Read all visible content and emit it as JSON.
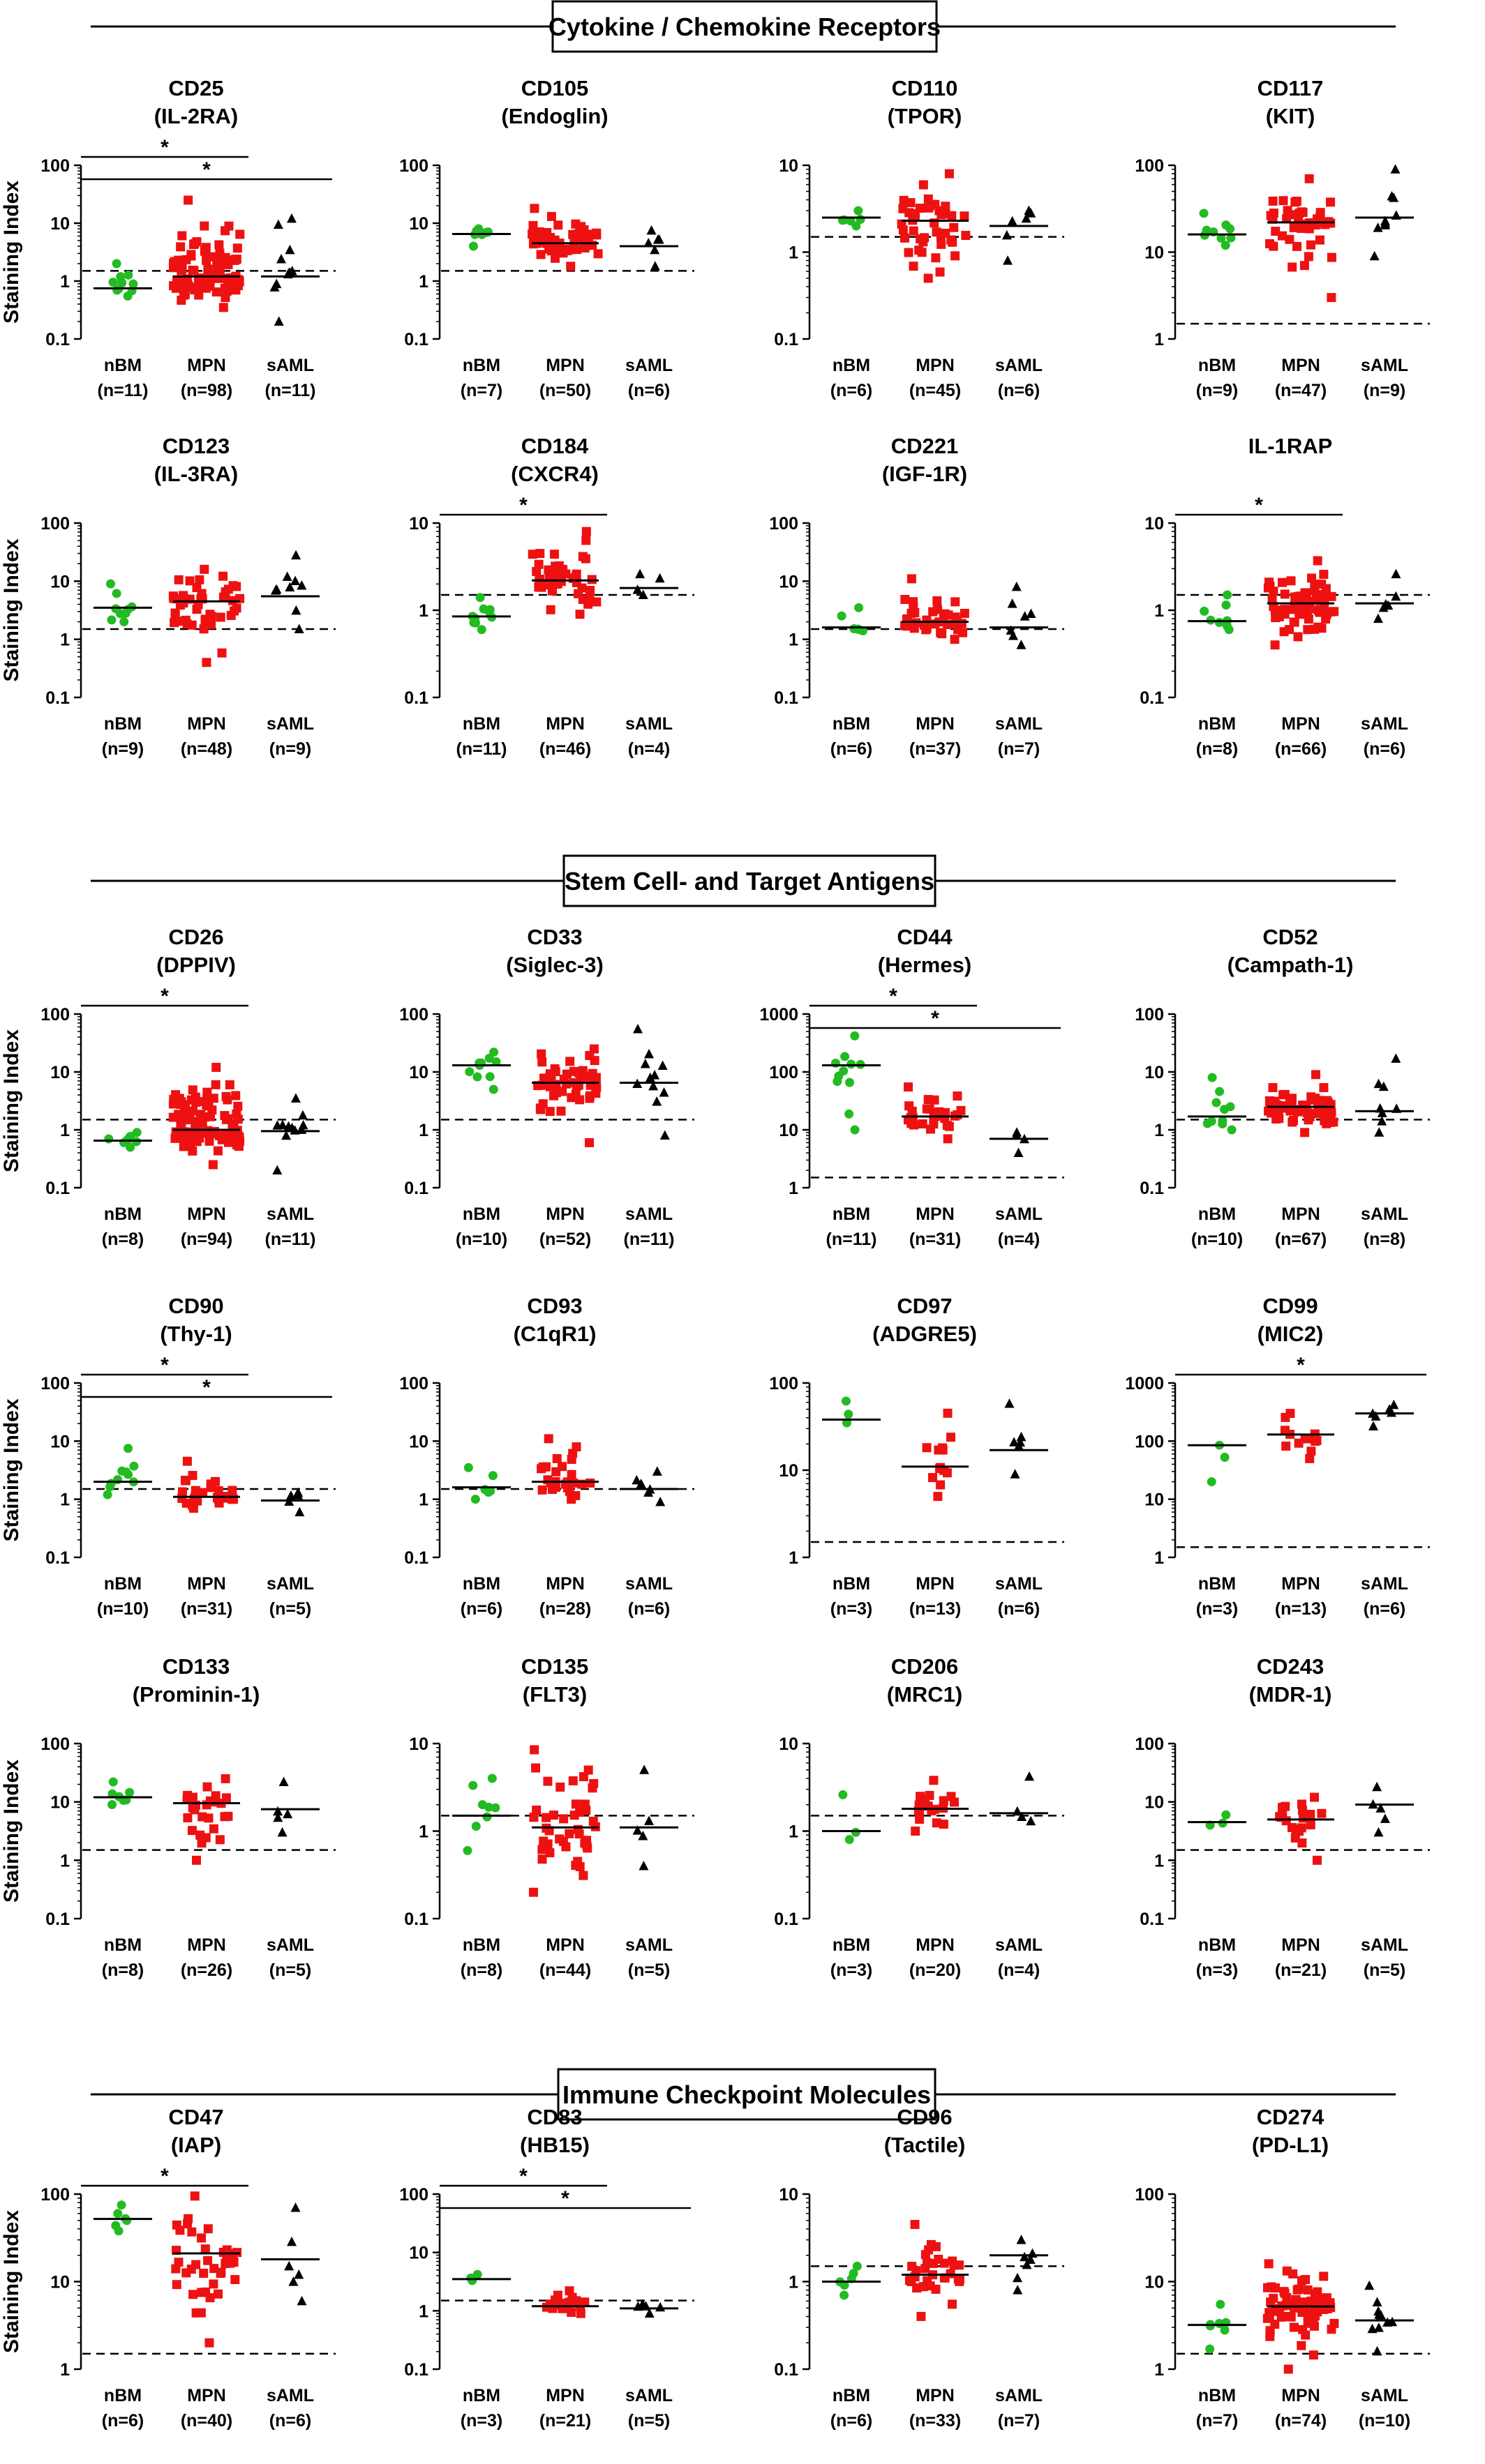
{
  "colors": {
    "nBM": "#22bb22",
    "MPN": "#ee1111",
    "sAML": "#000000"
  },
  "sections": [
    "Cytokine / Chemokine Receptors",
    "Stem Cell- and Target Antigens",
    "Immune Checkpoint Molecules"
  ],
  "ylabel": "Staining Index",
  "chart_data": [
    {
      "type": "scatter",
      "title": "CD25",
      "subtitle": "(IL-2RA)",
      "ylabel": "Staining Index",
      "yscale": "log",
      "ylim": [
        0.1,
        100
      ],
      "threshold": 1.5,
      "categories": [
        "nBM",
        "MPN",
        "sAML"
      ],
      "counts": [
        "(n=11)",
        "(n=98)",
        "(n=11)"
      ],
      "medians": [
        0.75,
        1.2,
        1.2
      ],
      "mins": [
        0.55,
        0.35,
        0.2
      ],
      "maxs": [
        2.0,
        25,
        12
      ],
      "sig": [
        [
          0,
          1
        ],
        [
          0,
          2
        ]
      ]
    },
    {
      "type": "scatter",
      "title": "CD105",
      "subtitle": "(Endoglin)",
      "ylabel": "",
      "yscale": "log",
      "ylim": [
        0.1,
        100
      ],
      "threshold": 1.5,
      "categories": [
        "nBM",
        "MPN",
        "sAML"
      ],
      "counts": [
        "(n=7)",
        "(n=50)",
        "(n=6)"
      ],
      "medians": [
        6.5,
        4.5,
        4.0
      ],
      "mins": [
        4.0,
        1.8,
        1.8
      ],
      "maxs": [
        8.0,
        18,
        7.5
      ],
      "sig": []
    },
    {
      "type": "scatter",
      "title": "CD110",
      "subtitle": "(TPOR)",
      "ylabel": "",
      "yscale": "log",
      "ylim": [
        0.1,
        10
      ],
      "threshold": 1.5,
      "categories": [
        "nBM",
        "MPN",
        "sAML"
      ],
      "counts": [
        "(n=6)",
        "(n=45)",
        "(n=6)"
      ],
      "medians": [
        2.5,
        2.3,
        2.0
      ],
      "mins": [
        2.0,
        0.5,
        0.8
      ],
      "maxs": [
        3.0,
        8.0,
        3.0
      ],
      "sig": []
    },
    {
      "type": "scatter",
      "title": "CD117",
      "subtitle": "(KIT)",
      "ylabel": "",
      "yscale": "log",
      "ylim": [
        1,
        100
      ],
      "threshold": 1.5,
      "categories": [
        "nBM",
        "MPN",
        "sAML"
      ],
      "counts": [
        "(n=9)",
        "(n=47)",
        "(n=9)"
      ],
      "medians": [
        16,
        22,
        25
      ],
      "mins": [
        12,
        3,
        9
      ],
      "maxs": [
        28,
        70,
        90
      ],
      "sig": []
    },
    {
      "type": "scatter",
      "title": "CD123",
      "subtitle": "(IL-3RA)",
      "ylabel": "Staining Index",
      "yscale": "log",
      "ylim": [
        0.1,
        100
      ],
      "threshold": 1.5,
      "categories": [
        "nBM",
        "MPN",
        "sAML"
      ],
      "counts": [
        "(n=9)",
        "(n=48)",
        "(n=9)"
      ],
      "medians": [
        3.5,
        4.5,
        5.5
      ],
      "mins": [
        2.0,
        0.4,
        1.5
      ],
      "maxs": [
        9.0,
        16,
        28
      ],
      "sig": []
    },
    {
      "type": "scatter",
      "title": "CD184",
      "subtitle": "(CXCR4)",
      "ylabel": "",
      "yscale": "log",
      "ylim": [
        0.1,
        10
      ],
      "threshold": 1.5,
      "categories": [
        "nBM",
        "MPN",
        "sAML"
      ],
      "counts": [
        "(n=11)",
        "(n=46)",
        "(n=4)"
      ],
      "medians": [
        0.85,
        2.2,
        1.8
      ],
      "mins": [
        0.6,
        0.9,
        1.5
      ],
      "maxs": [
        1.4,
        8.0,
        2.6
      ],
      "sig": [
        [
          0,
          1
        ]
      ]
    },
    {
      "type": "scatter",
      "title": "CD221",
      "subtitle": "(IGF-1R)",
      "ylabel": "",
      "yscale": "log",
      "ylim": [
        0.1,
        100
      ],
      "threshold": 1.5,
      "categories": [
        "nBM",
        "MPN",
        "sAML"
      ],
      "counts": [
        "(n=6)",
        "(n=37)",
        "(n=7)"
      ],
      "medians": [
        1.6,
        2.0,
        1.6
      ],
      "mins": [
        1.4,
        1.0,
        0.8
      ],
      "maxs": [
        3.5,
        11,
        8.0
      ],
      "sig": []
    },
    {
      "type": "scatter",
      "title": "IL-1RAP",
      "subtitle": "",
      "ylabel": "",
      "yscale": "log",
      "ylim": [
        0.1,
        10
      ],
      "threshold": 1.5,
      "categories": [
        "nBM",
        "MPN",
        "sAML"
      ],
      "counts": [
        "(n=8)",
        "(n=66)",
        "(n=6)"
      ],
      "medians": [
        0.75,
        1.2,
        1.2
      ],
      "mins": [
        0.6,
        0.4,
        0.8
      ],
      "maxs": [
        1.5,
        3.7,
        2.6
      ],
      "sig": [
        [
          0,
          1
        ]
      ]
    },
    {
      "type": "scatter",
      "title": "CD26",
      "subtitle": "(DPPIV)",
      "ylabel": "Staining Index",
      "yscale": "log",
      "ylim": [
        0.1,
        100
      ],
      "threshold": 1.5,
      "categories": [
        "nBM",
        "MPN",
        "sAML"
      ],
      "counts": [
        "(n=8)",
        "(n=94)",
        "(n=11)"
      ],
      "medians": [
        0.65,
        1.0,
        0.95
      ],
      "mins": [
        0.5,
        0.25,
        0.2
      ],
      "maxs": [
        0.9,
        12,
        3.5
      ],
      "sig": [
        [
          0,
          1
        ]
      ]
    },
    {
      "type": "scatter",
      "title": "CD33",
      "subtitle": "(Siglec-3)",
      "ylabel": "",
      "yscale": "log",
      "ylim": [
        0.1,
        100
      ],
      "threshold": 1.5,
      "categories": [
        "nBM",
        "MPN",
        "sAML"
      ],
      "counts": [
        "(n=10)",
        "(n=52)",
        "(n=11)"
      ],
      "medians": [
        13,
        6.5,
        6.5
      ],
      "mins": [
        5.0,
        0.6,
        0.8
      ],
      "maxs": [
        22,
        25,
        55
      ],
      "sig": []
    },
    {
      "type": "scatter",
      "title": "CD44",
      "subtitle": "(Hermes)",
      "ylabel": "",
      "yscale": "log",
      "ylim": [
        1,
        1000
      ],
      "threshold": 1.5,
      "categories": [
        "nBM",
        "MPN",
        "sAML"
      ],
      "counts": [
        "(n=11)",
        "(n=31)",
        "(n=4)"
      ],
      "medians": [
        130,
        17,
        7
      ],
      "mins": [
        10,
        7,
        4
      ],
      "maxs": [
        420,
        55,
        9
      ],
      "sig": [
        [
          0,
          1
        ],
        [
          0,
          2
        ]
      ]
    },
    {
      "type": "scatter",
      "title": "CD52",
      "subtitle": "(Campath-1)",
      "ylabel": "",
      "yscale": "log",
      "ylim": [
        0.1,
        100
      ],
      "threshold": 1.5,
      "categories": [
        "nBM",
        "MPN",
        "sAML"
      ],
      "counts": [
        "(n=10)",
        "(n=67)",
        "(n=8)"
      ],
      "medians": [
        1.7,
        2.5,
        2.1
      ],
      "mins": [
        1.0,
        0.9,
        0.9
      ],
      "maxs": [
        8.0,
        9.0,
        17
      ],
      "sig": []
    },
    {
      "type": "scatter",
      "title": "CD90",
      "subtitle": "(Thy-1)",
      "ylabel": "Staining Index",
      "yscale": "log",
      "ylim": [
        0.1,
        100
      ],
      "threshold": 1.5,
      "categories": [
        "nBM",
        "MPN",
        "sAML"
      ],
      "counts": [
        "(n=10)",
        "(n=31)",
        "(n=5)"
      ],
      "medians": [
        2.0,
        1.1,
        0.95
      ],
      "mins": [
        1.2,
        0.7,
        0.6
      ],
      "maxs": [
        7.5,
        4.5,
        1.3
      ],
      "sig": [
        [
          0,
          1
        ],
        [
          0,
          2
        ]
      ]
    },
    {
      "type": "scatter",
      "title": "CD93",
      "subtitle": "(C1qR1)",
      "ylabel": "",
      "yscale": "log",
      "ylim": [
        0.1,
        100
      ],
      "threshold": 1.5,
      "categories": [
        "nBM",
        "MPN",
        "sAML"
      ],
      "counts": [
        "(n=6)",
        "(n=28)",
        "(n=6)"
      ],
      "medians": [
        1.6,
        2.0,
        1.5
      ],
      "mins": [
        1.0,
        1.0,
        0.9
      ],
      "maxs": [
        3.5,
        11,
        3.0
      ],
      "sig": []
    },
    {
      "type": "scatter",
      "title": "CD97",
      "subtitle": "(ADGRE5)",
      "ylabel": "",
      "yscale": "log",
      "ylim": [
        1,
        100
      ],
      "threshold": 1.5,
      "categories": [
        "nBM",
        "MPN",
        "sAML"
      ],
      "counts": [
        "(n=3)",
        "(n=13)",
        "(n=6)"
      ],
      "medians": [
        38,
        11,
        17
      ],
      "mins": [
        35,
        5,
        9
      ],
      "maxs": [
        62,
        45,
        58
      ],
      "sig": []
    },
    {
      "type": "scatter",
      "title": "CD99",
      "subtitle": "(MIC2)",
      "ylabel": "",
      "yscale": "log",
      "ylim": [
        1,
        1000
      ],
      "threshold": 1.5,
      "categories": [
        "nBM",
        "MPN",
        "sAML"
      ],
      "counts": [
        "(n=3)",
        "(n=13)",
        "(n=6)"
      ],
      "medians": [
        85,
        130,
        300
      ],
      "mins": [
        20,
        50,
        180
      ],
      "maxs": [
        85,
        300,
        420
      ],
      "sig": [
        [
          0,
          2
        ]
      ]
    },
    {
      "type": "scatter",
      "title": "CD133",
      "subtitle": "(Prominin-1)",
      "ylabel": "Staining Index",
      "yscale": "log",
      "ylim": [
        0.1,
        100
      ],
      "threshold": 1.5,
      "categories": [
        "nBM",
        "MPN",
        "sAML"
      ],
      "counts": [
        "(n=8)",
        "(n=26)",
        "(n=5)"
      ],
      "medians": [
        12,
        9.5,
        7.5
      ],
      "mins": [
        9.0,
        1.0,
        3.0
      ],
      "maxs": [
        22,
        25,
        22
      ],
      "sig": []
    },
    {
      "type": "scatter",
      "title": "CD135",
      "subtitle": "(FLT3)",
      "ylabel": "",
      "yscale": "log",
      "ylim": [
        0.1,
        10
      ],
      "threshold": 1.5,
      "categories": [
        "nBM",
        "MPN",
        "sAML"
      ],
      "counts": [
        "(n=8)",
        "(n=44)",
        "(n=5)"
      ],
      "medians": [
        1.5,
        1.1,
        1.1
      ],
      "mins": [
        0.6,
        0.2,
        0.4
      ],
      "maxs": [
        4.0,
        8.5,
        5.0
      ],
      "sig": []
    },
    {
      "type": "scatter",
      "title": "CD206",
      "subtitle": "(MRC1)",
      "ylabel": "",
      "yscale": "log",
      "ylim": [
        0.1,
        10
      ],
      "threshold": 1.5,
      "categories": [
        "nBM",
        "MPN",
        "sAML"
      ],
      "counts": [
        "(n=3)",
        "(n=20)",
        "(n=4)"
      ],
      "medians": [
        1.0,
        1.8,
        1.6
      ],
      "mins": [
        0.8,
        1.0,
        1.3
      ],
      "maxs": [
        2.6,
        3.8,
        4.2
      ],
      "sig": []
    },
    {
      "type": "scatter",
      "title": "CD243",
      "subtitle": "(MDR-1)",
      "ylabel": "",
      "yscale": "log",
      "ylim": [
        0.1,
        100
      ],
      "threshold": 1.5,
      "categories": [
        "nBM",
        "MPN",
        "sAML"
      ],
      "counts": [
        "(n=3)",
        "(n=21)",
        "(n=5)"
      ],
      "medians": [
        4.5,
        5.0,
        9.0
      ],
      "mins": [
        4.0,
        1.0,
        3.0
      ],
      "maxs": [
        6.0,
        12,
        18
      ],
      "sig": []
    },
    {
      "type": "scatter",
      "title": "CD47",
      "subtitle": "(IAP)",
      "ylabel": "Staining Index",
      "yscale": "log",
      "ylim": [
        1,
        100
      ],
      "threshold": 1.5,
      "categories": [
        "nBM",
        "MPN",
        "sAML"
      ],
      "counts": [
        "(n=6)",
        "(n=40)",
        "(n=6)"
      ],
      "medians": [
        52,
        21,
        18
      ],
      "mins": [
        38,
        2,
        6
      ],
      "maxs": [
        75,
        95,
        70
      ],
      "sig": [
        [
          0,
          1
        ]
      ]
    },
    {
      "type": "scatter",
      "title": "CD83",
      "subtitle": "(HB15)",
      "ylabel": "",
      "yscale": "log",
      "ylim": [
        0.1,
        100
      ],
      "threshold": 1.5,
      "categories": [
        "nBM",
        "MPN",
        "sAML"
      ],
      "counts": [
        "(n=3)",
        "(n=21)",
        "(n=5)"
      ],
      "medians": [
        3.5,
        1.2,
        1.1
      ],
      "mins": [
        3.3,
        0.9,
        0.9
      ],
      "maxs": [
        4.2,
        2.2,
        1.3
      ],
      "sig": [
        [
          0,
          1
        ],
        [
          0,
          2
        ]
      ]
    },
    {
      "type": "scatter",
      "title": "CD96",
      "subtitle": "(Tactile)",
      "ylabel": "",
      "yscale": "log",
      "ylim": [
        0.1,
        10
      ],
      "threshold": 1.5,
      "categories": [
        "nBM",
        "MPN",
        "sAML"
      ],
      "counts": [
        "(n=6)",
        "(n=33)",
        "(n=7)"
      ],
      "medians": [
        1.0,
        1.2,
        2.0
      ],
      "mins": [
        0.7,
        0.4,
        0.8
      ],
      "maxs": [
        1.5,
        4.5,
        3.0
      ],
      "sig": []
    },
    {
      "type": "scatter",
      "title": "CD274",
      "subtitle": "(PD-L1)",
      "ylabel": "",
      "yscale": "log",
      "ylim": [
        1,
        100
      ],
      "threshold": 1.5,
      "categories": [
        "nBM",
        "MPN",
        "sAML"
      ],
      "counts": [
        "(n=7)",
        "(n=74)",
        "(n=10)"
      ],
      "medians": [
        3.2,
        5.2,
        3.6
      ],
      "mins": [
        1.7,
        1.0,
        1.6
      ],
      "maxs": [
        5.5,
        16,
        9
      ],
      "sig": []
    }
  ]
}
